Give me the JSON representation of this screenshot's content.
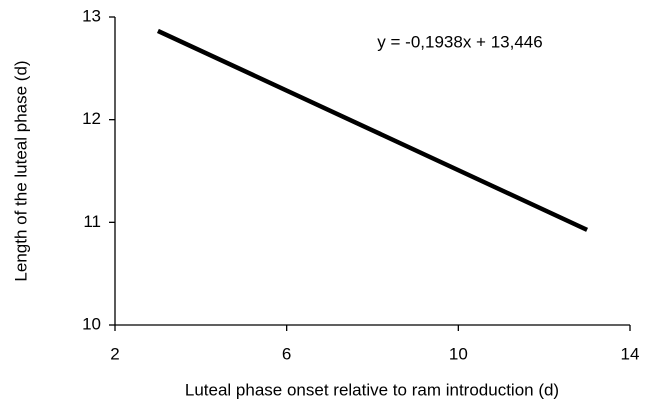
{
  "chart_data": {
    "type": "line",
    "annotation": "y = -0,1938x + 13,446",
    "x_label": "Luteal phase onset relative to ram introduction (d)",
    "y_label": "Length of the luteal phase (d)",
    "x": [
      3,
      13
    ],
    "values": [
      12.8646,
      10.9266
    ],
    "color": "#000000",
    "xlim": [
      2,
      14
    ],
    "xticks": [
      2,
      6,
      10,
      14
    ],
    "ylim": [
      10,
      13
    ],
    "yticks": [
      10,
      11,
      12,
      13
    ],
    "grid": false
  }
}
